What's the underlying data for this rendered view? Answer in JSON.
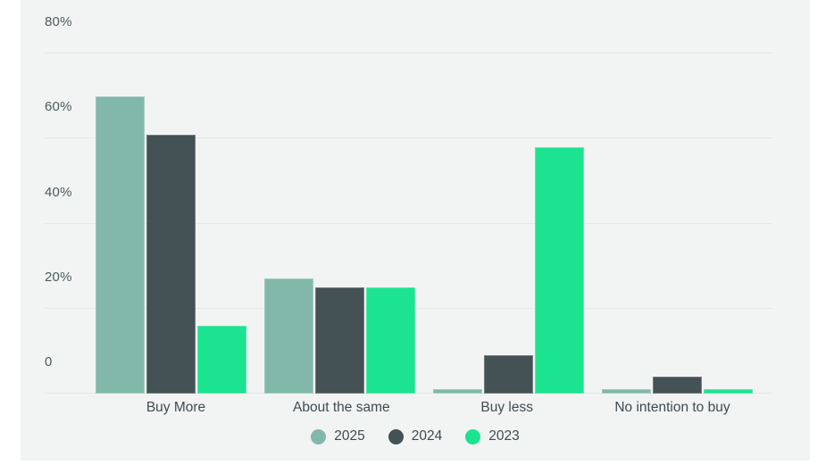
{
  "panel": {
    "background": "#F2F4F3",
    "page_background": "#FFFFFF",
    "gridline_color": "#E4E7E6",
    "tick_text_color": "#4C5A60",
    "label_text_color": "#3E4B50"
  },
  "chart_data": {
    "type": "bar",
    "title": "",
    "xlabel": "",
    "ylabel": "",
    "categories": [
      "Buy More",
      "About the same",
      "Buy less",
      "No intention to buy"
    ],
    "series": [
      {
        "name": "2025",
        "color": "#82B8AA",
        "values": [
          70,
          27,
          1,
          1
        ]
      },
      {
        "name": "2024",
        "color": "#445155",
        "values": [
          61,
          25,
          9,
          4
        ]
      },
      {
        "name": "2023",
        "color": "#1CE38F",
        "values": [
          16,
          25,
          58,
          1
        ]
      }
    ],
    "ylim": [
      0,
      80
    ],
    "yticks": [
      {
        "value": 80,
        "label": "80%"
      },
      {
        "value": 60,
        "label": "60%"
      },
      {
        "value": 40,
        "label": "40%"
      },
      {
        "value": 20,
        "label": "20%"
      },
      {
        "value": 0,
        "label": "0"
      }
    ],
    "grid": true,
    "legend_position": "bottom"
  }
}
